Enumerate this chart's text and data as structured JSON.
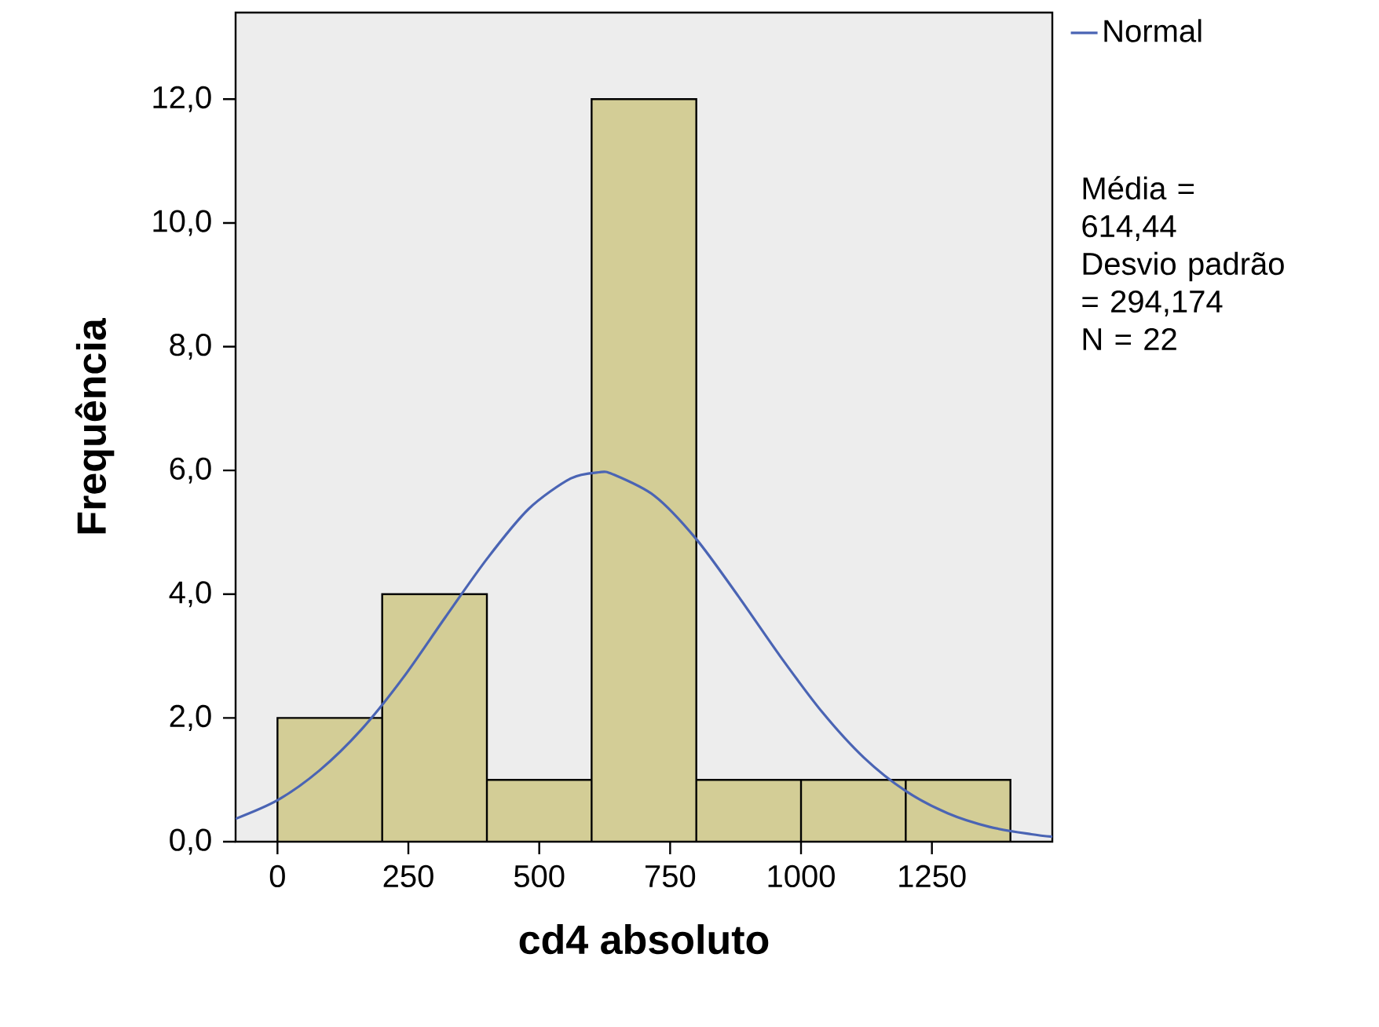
{
  "chart_data": {
    "type": "histogram",
    "xlabel": "cd4 absoluto",
    "ylabel": "Frequência",
    "bins": [
      0,
      200,
      400,
      600,
      800,
      1000,
      1200,
      1400
    ],
    "values": [
      2,
      4,
      1,
      12,
      1,
      1,
      1
    ],
    "color": "#d3cd96",
    "series": [
      {
        "name": "Normal",
        "type": "line",
        "color": "#4a64b4",
        "x": [
          -80,
          0,
          80,
          160,
          240,
          320,
          400,
          480,
          560,
          614,
          640,
          720,
          800,
          880,
          960,
          1040,
          1120,
          1200,
          1280,
          1360,
          1440,
          1480
        ],
        "values": [
          0.37,
          0.67,
          1.15,
          1.81,
          2.65,
          3.62,
          4.57,
          5.38,
          5.87,
          5.97,
          5.94,
          5.59,
          4.89,
          3.97,
          3.0,
          2.1,
          1.36,
          0.82,
          0.46,
          0.24,
          0.12,
          0.08
        ]
      }
    ],
    "xlim": [
      -80,
      1480
    ],
    "ylim": [
      0,
      13.4
    ],
    "xticks": [
      0,
      250,
      500,
      750,
      1000,
      1250
    ],
    "yticks": [
      {
        "value": 0,
        "label": "0,0"
      },
      {
        "value": 2,
        "label": "2,0"
      },
      {
        "value": 4,
        "label": "4,0"
      },
      {
        "value": 6,
        "label": "6,0"
      },
      {
        "value": 8,
        "label": "8,0"
      },
      {
        "value": 10,
        "label": "10,0"
      },
      {
        "value": 12,
        "label": "12,0"
      }
    ],
    "legend": "top right",
    "annotations": [
      "Média = 614,44",
      "Desvio padrão = 294,174",
      "N = 22"
    ]
  }
}
